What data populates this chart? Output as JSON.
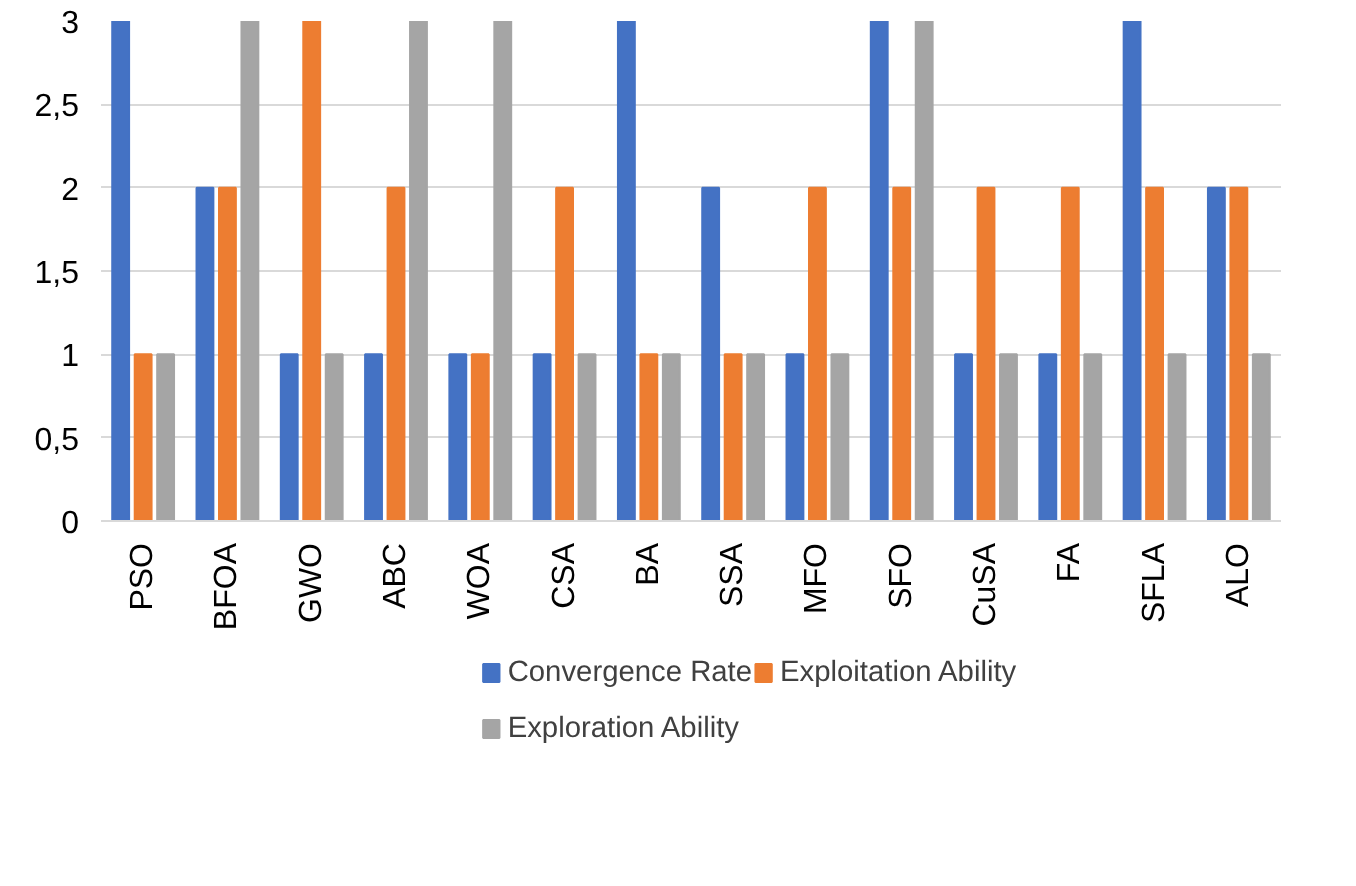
{
  "chart_data": {
    "type": "bar",
    "categories": [
      "PSO",
      "BFOA",
      "GWO",
      "ABC",
      "WOA",
      "CSA",
      "BA",
      "SSA",
      "MFO",
      "SFO",
      "CuSA",
      "FA",
      "SFLA",
      "ALO"
    ],
    "series": [
      {
        "name": "Convergence Rate",
        "color": "#4472c4",
        "values": [
          3,
          2,
          1,
          1,
          1,
          1,
          3,
          2,
          1,
          3,
          1,
          1,
          3,
          2
        ]
      },
      {
        "name": "Exploitation Ability",
        "color": "#ed7d31",
        "values": [
          1,
          2,
          3,
          2,
          1,
          2,
          1,
          1,
          2,
          2,
          2,
          2,
          2,
          2
        ]
      },
      {
        "name": "Exploration Ability",
        "color": "#a5a5a5",
        "values": [
          1,
          3,
          1,
          3,
          3,
          1,
          1,
          1,
          1,
          3,
          1,
          1,
          1,
          1
        ]
      }
    ],
    "ylim": [
      0,
      3
    ],
    "yticks": [
      0,
      {
        "value": 0.5,
        "label": "0,5"
      },
      1,
      {
        "value": 1.5,
        "label": "1,5"
      },
      2,
      {
        "value": 2.5,
        "label": "2,5"
      },
      3
    ],
    "grid": "y",
    "legend": "bottom"
  }
}
